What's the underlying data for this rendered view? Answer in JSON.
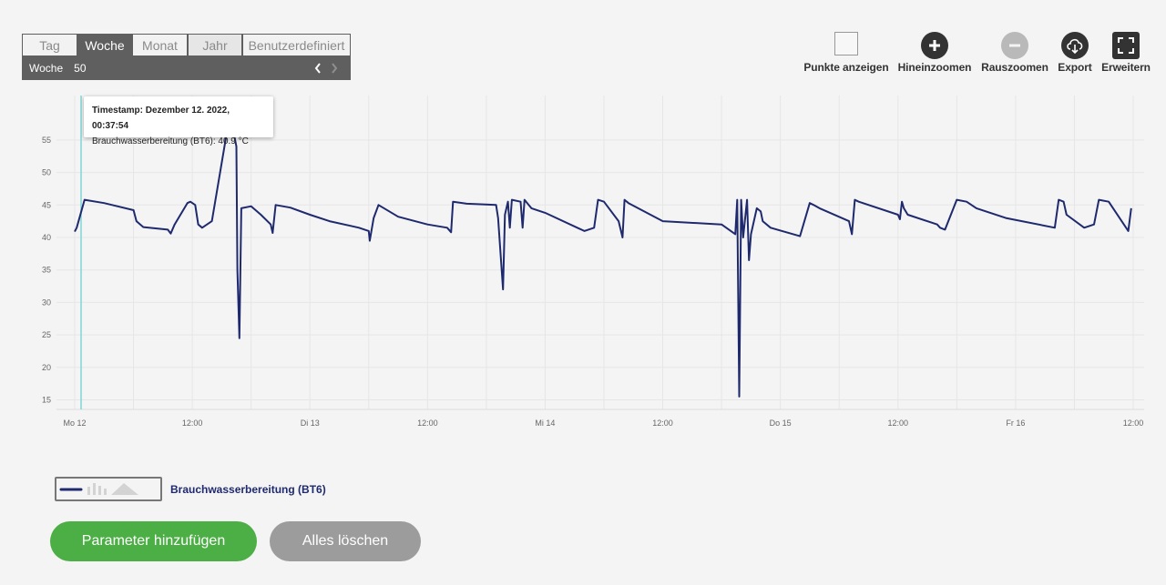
{
  "tabs": [
    {
      "label": "Tag"
    },
    {
      "label": "Woche"
    },
    {
      "label": "Monat"
    },
    {
      "label": "Jahr"
    },
    {
      "label": "Benutzerdefiniert"
    }
  ],
  "period": {
    "label": "Woche",
    "number": "50",
    "prev_icon": "chevron-left-icon",
    "next_icon": "chevron-right-icon"
  },
  "toolbar": {
    "show_points": "Punkte anzeigen",
    "zoom_in": "Hineinzoomen",
    "zoom_out": "Rauszoomen",
    "export": "Export",
    "expand": "Erweitern"
  },
  "tooltip": {
    "timestamp": "Timestamp: Dezember 12. 2022, 00:37:54",
    "value": "Brauchwasserbereitung (BT6): 40.9 °C"
  },
  "legend": {
    "label": "Brauchwasserbereitung (BT6)"
  },
  "buttons": {
    "add": "Parameter hinzufügen",
    "clear": "Alles löschen"
  },
  "colors": {
    "series": "#1f2a6e",
    "accent_green": "#4caf45",
    "cursor": "#7fd6d6"
  },
  "chart_data": {
    "type": "line",
    "title": "",
    "xlabel": "",
    "ylabel": "",
    "ylim": [
      10,
      60
    ],
    "yticks": [
      15,
      20,
      25,
      30,
      35,
      40,
      45,
      50,
      55
    ],
    "xticks": [
      "Mo 12",
      "12:00",
      "Di 13",
      "12:00",
      "Mi 14",
      "12:00",
      "Do 15",
      "12:00",
      "Fr 16",
      "12:00"
    ],
    "xrange_hours": [
      0,
      108
    ],
    "grid": true,
    "series": [
      {
        "name": "Brauchwasserbereitung (BT6)",
        "x": [
          0.0,
          0.2,
          1.0,
          3.0,
          6.0,
          6.3,
          7.0,
          9.5,
          9.8,
          10.2,
          11.5,
          11.8,
          12.3,
          12.6,
          13.0,
          14.0,
          15.5,
          16.3,
          16.5,
          16.6,
          16.8,
          17.0,
          18.0,
          19.0,
          20.0,
          20.2,
          20.5,
          22.0,
          24.0,
          26.0,
          29.0,
          30.0,
          30.1,
          30.5,
          31.0,
          33.0,
          36.0,
          38.0,
          38.4,
          38.6,
          40.0,
          43.0,
          43.2,
          43.7,
          43.9,
          44.2,
          44.4,
          44.6,
          45.5,
          45.7,
          45.9,
          46.6,
          48.0,
          52.0,
          53.0,
          53.4,
          54.0,
          55.5,
          55.9,
          56.1,
          56.5,
          60.0,
          66.0,
          67.4,
          67.6,
          67.8,
          68.0,
          68.2,
          68.6,
          68.8,
          69.0,
          69.6,
          70.0,
          70.2,
          71.0,
          74.0,
          75.0,
          75.4,
          76.0,
          79.0,
          79.3,
          79.6,
          80.0,
          84.0,
          84.2,
          84.4,
          84.6,
          85.0,
          88.0,
          88.3,
          88.8,
          90.0,
          91.0,
          92.0,
          95.0,
          100.0,
          100.4,
          100.9,
          101.2,
          103.0,
          104.0,
          104.5,
          105.5,
          107.5,
          107.8
        ],
        "values": [
          40.9,
          41.5,
          45.8,
          45.3,
          44.2,
          42.5,
          41.6,
          41.2,
          40.6,
          42.0,
          45.3,
          45.5,
          45.0,
          42.0,
          41.5,
          42.5,
          56.0,
          55.5,
          54.0,
          35.0,
          24.5,
          44.5,
          44.8,
          43.5,
          42.0,
          40.7,
          45.0,
          44.6,
          43.5,
          42.5,
          41.5,
          41.0,
          39.5,
          43.0,
          45.0,
          43.2,
          42.0,
          41.5,
          40.8,
          45.5,
          45.2,
          45.0,
          43.0,
          32.0,
          43.5,
          45.5,
          41.5,
          45.8,
          45.5,
          41.5,
          45.8,
          44.5,
          43.8,
          41.0,
          41.5,
          45.8,
          45.5,
          42.5,
          40.0,
          45.8,
          45.3,
          42.5,
          42.0,
          40.5,
          45.8,
          15.5,
          45.8,
          40.0,
          45.8,
          36.5,
          40.5,
          44.5,
          44.0,
          42.5,
          41.5,
          40.2,
          45.3,
          45.0,
          44.5,
          42.5,
          40.5,
          45.8,
          45.5,
          43.5,
          42.8,
          45.5,
          44.5,
          43.5,
          42.0,
          41.5,
          41.2,
          45.8,
          45.5,
          44.5,
          43.0,
          41.5,
          45.8,
          45.5,
          43.5,
          41.5,
          42.0,
          45.8,
          45.5,
          41.0,
          44.5
        ]
      }
    ]
  }
}
